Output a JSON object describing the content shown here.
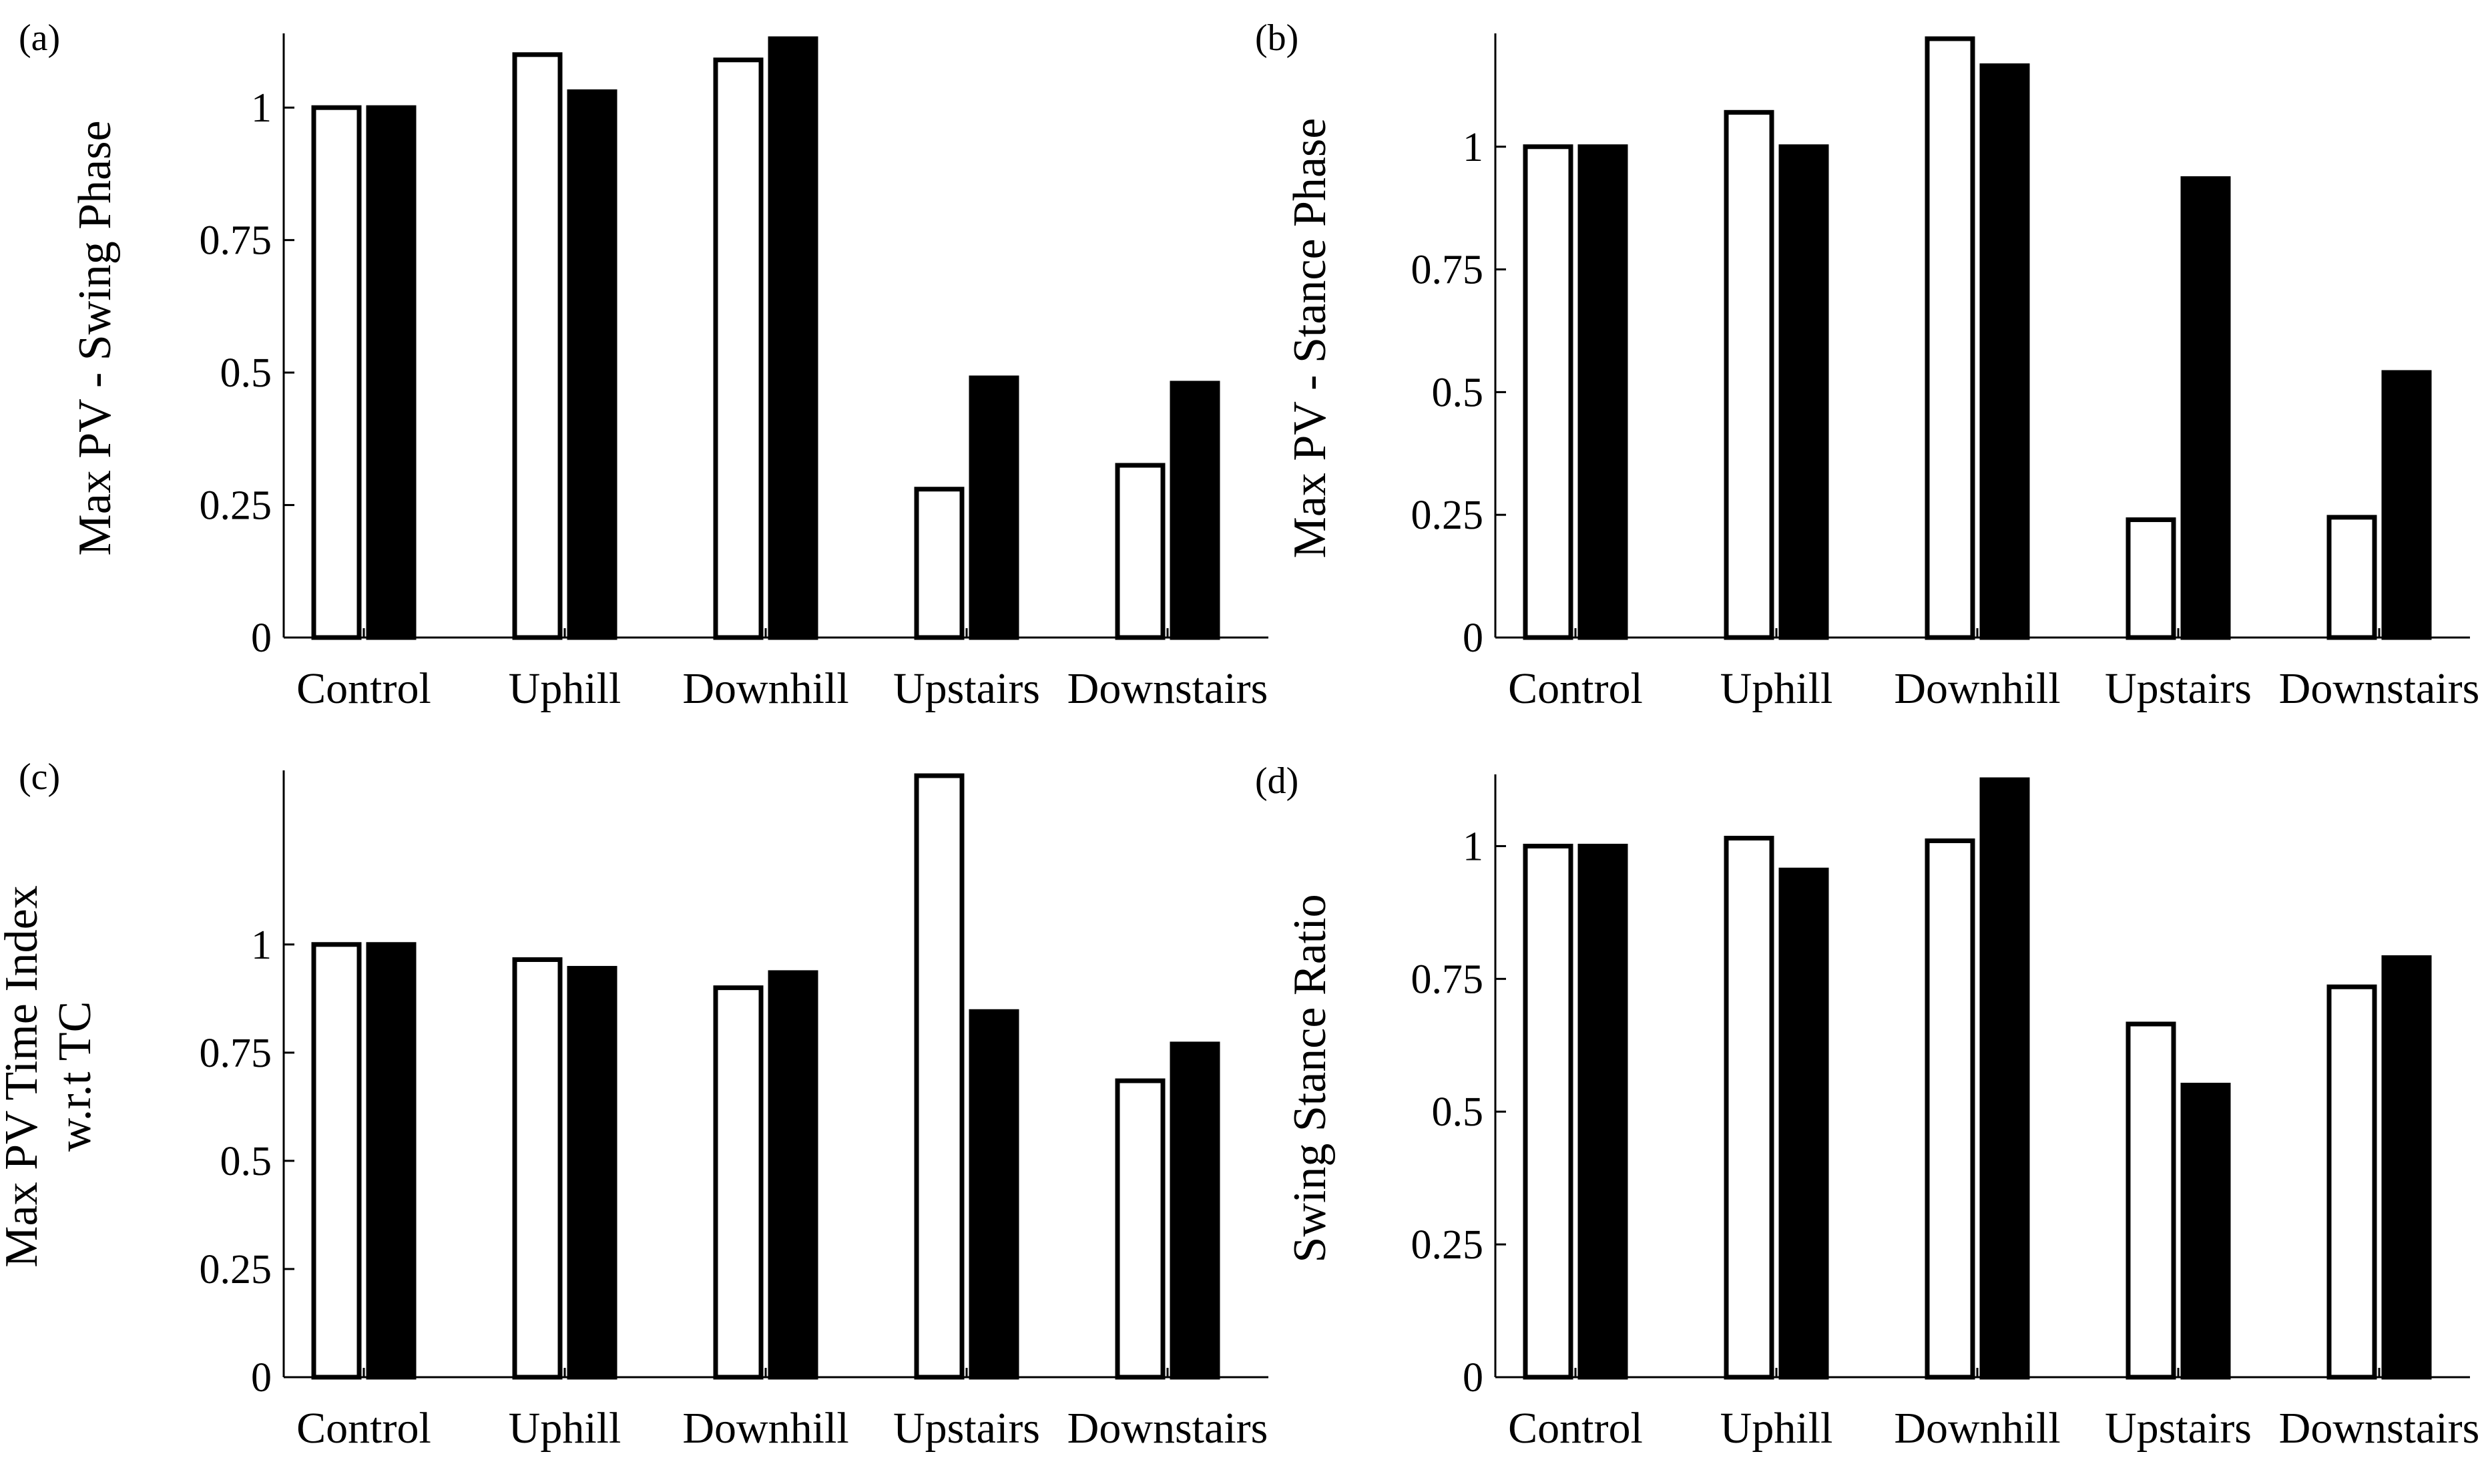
{
  "colors": {
    "open_bar_fill": "#ffffff",
    "filled_bar_fill": "#000000",
    "stroke": "#000000"
  },
  "chart_data": [
    {
      "type": "bar",
      "panel_label": "(a)",
      "ylabel_lines": [
        "Max PV - Swing Phase"
      ],
      "categories": [
        "Control",
        "Uphill",
        "Downhill",
        "Upstairs",
        "Downstairs"
      ],
      "series": [
        {
          "name": "open",
          "values": [
            1.0,
            1.1,
            1.09,
            0.28,
            0.325
          ]
        },
        {
          "name": "filled",
          "values": [
            1.0,
            1.03,
            1.13,
            0.49,
            0.48
          ]
        }
      ],
      "yticks": [
        0,
        0.25,
        0.5,
        0.75,
        1
      ],
      "ytick_labels": [
        "0",
        "0.25",
        "0.5",
        "0.75",
        "1"
      ],
      "ylim": [
        0,
        1.13
      ]
    },
    {
      "type": "bar",
      "panel_label": "(b)",
      "ylabel_lines": [
        "Max PV - Stance Phase"
      ],
      "categories": [
        "Control",
        "Uphill",
        "Downhill",
        "Upstairs",
        "Downstairs"
      ],
      "series": [
        {
          "name": "open",
          "values": [
            1.0,
            1.07,
            1.22,
            0.24,
            0.245
          ]
        },
        {
          "name": "filled",
          "values": [
            1.0,
            1.0,
            1.165,
            0.935,
            0.54
          ]
        }
      ],
      "yticks": [
        0,
        0.25,
        0.5,
        0.75,
        1
      ],
      "ytick_labels": [
        "0",
        "0.25",
        "0.5",
        "0.75",
        "1"
      ],
      "ylim": [
        0,
        1.22
      ]
    },
    {
      "type": "bar",
      "panel_label": "(c)",
      "ylabel_lines": [
        "Max PV Time Index",
        "w.r.t TC"
      ],
      "categories": [
        "Control",
        "Uphill",
        "Downhill",
        "Upstairs",
        "Downstairs"
      ],
      "series": [
        {
          "name": "open",
          "values": [
            1.0,
            0.965,
            0.9,
            1.39,
            0.685
          ]
        },
        {
          "name": "filled",
          "values": [
            1.0,
            0.945,
            0.935,
            0.845,
            0.77
          ]
        }
      ],
      "yticks": [
        0,
        0.25,
        0.5,
        0.75,
        1
      ],
      "ytick_labels": [
        "0",
        "0.25",
        "0.5",
        "0.75",
        "1"
      ],
      "ylim": [
        0,
        1.39
      ]
    },
    {
      "type": "bar",
      "panel_label": "(d)",
      "ylabel_lines": [
        "Swing Stance Ratio"
      ],
      "categories": [
        "Control",
        "Uphill",
        "Downhill",
        "Upstairs",
        "Downstairs"
      ],
      "series": [
        {
          "name": "open",
          "values": [
            1.0,
            1.015,
            1.01,
            0.665,
            0.735
          ]
        },
        {
          "name": "filled",
          "values": [
            1.0,
            0.955,
            1.125,
            0.55,
            0.79
          ]
        }
      ],
      "yticks": [
        0,
        0.25,
        0.5,
        0.75,
        1
      ],
      "ytick_labels": [
        "0",
        "0.25",
        "0.5",
        "0.75",
        "1"
      ],
      "ylim": [
        0,
        1.125
      ]
    }
  ]
}
